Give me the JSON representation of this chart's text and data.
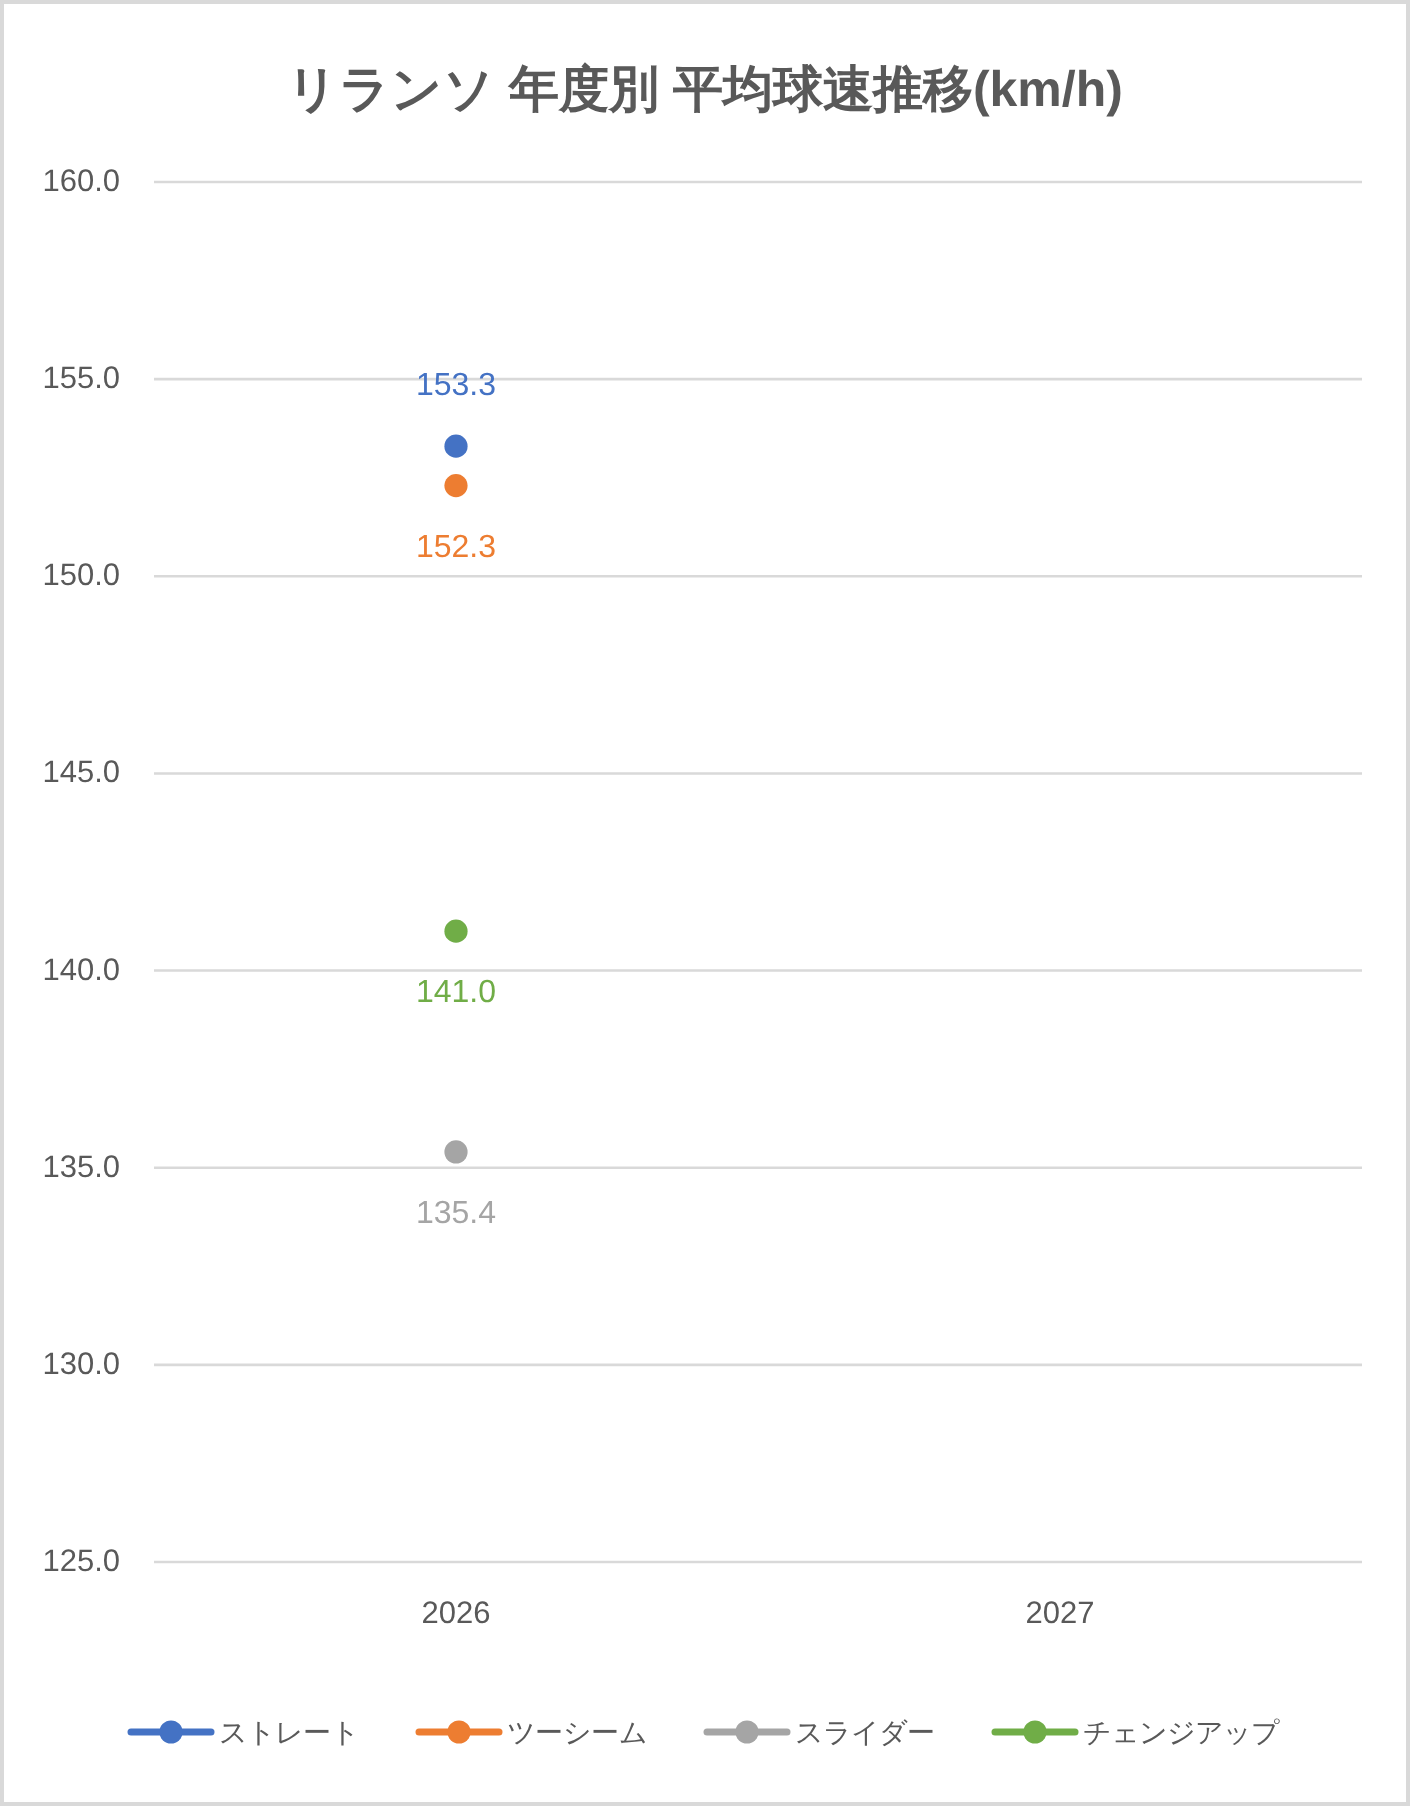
{
  "chart_data": {
    "type": "line",
    "title": "リランソ 年度別 平均球速推移(km/h)",
    "categories": [
      "2026",
      "2027"
    ],
    "series": [
      {
        "name": "ストレート",
        "color": "#4472c4",
        "values": [
          153.3,
          null
        ],
        "value_labels": [
          "153.3",
          null
        ]
      },
      {
        "name": "ツーシーム",
        "color": "#ed7d31",
        "values": [
          152.3,
          null
        ],
        "value_labels": [
          "152.3",
          null
        ]
      },
      {
        "name": "スライダー",
        "color": "#a5a5a5",
        "values": [
          135.4,
          null
        ],
        "value_labels": [
          "135.4",
          null
        ]
      },
      {
        "name": "チェンジアップ",
        "color": "#70ad47",
        "values": [
          141.0,
          null
        ],
        "value_labels": [
          "141.0",
          null
        ]
      }
    ],
    "ylim": [
      125,
      160
    ],
    "yticks": [
      {
        "value": 125,
        "label": "125.0"
      },
      {
        "value": 130,
        "label": "130.0"
      },
      {
        "value": 135,
        "label": "135.0"
      },
      {
        "value": 140,
        "label": "140.0"
      },
      {
        "value": 145,
        "label": "145.0"
      },
      {
        "value": 150,
        "label": "150.0"
      },
      {
        "value": 155,
        "label": "155.0"
      },
      {
        "value": 160,
        "label": "160.0"
      }
    ],
    "grid": "y",
    "legend": "bottom",
    "marker": "circle"
  }
}
